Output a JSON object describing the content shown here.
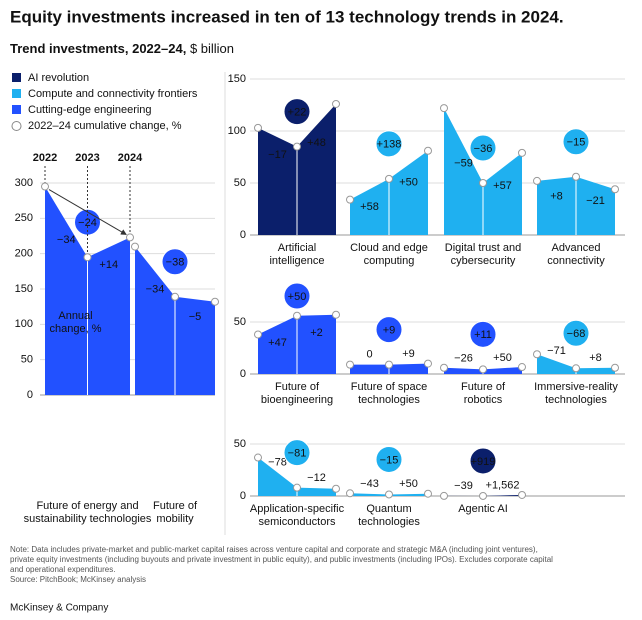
{
  "header": {
    "title": "Equity investments increased in ten of 13 technology trends in 2024.",
    "subtitle_bold": "Trend investments, 2022–24,",
    "subtitle_unit": "$ billion"
  },
  "legend": [
    {
      "label": "AI revolution",
      "color": "#0b1f6b"
    },
    {
      "label": "Compute and connectivity frontiers",
      "color": "#1fb0f0"
    },
    {
      "label": "Cutting-edge engineering",
      "color": "#2251ff"
    },
    {
      "label": "2022–24 cumulative change, %"
    }
  ],
  "chart_data": [
    {
      "type": "area",
      "ylim": [
        0,
        300
      ],
      "yticks": [
        0,
        50,
        100,
        150,
        200,
        250,
        300
      ],
      "grid": true,
      "panels": [
        {
          "label": [
            "Future of energy and",
            "sustainability technologies"
          ],
          "color": "#2251ff",
          "x": [
            "2022",
            "2023",
            "2024"
          ],
          "values": [
            295,
            195,
            223
          ],
          "change_labels": [
            "−34",
            "+14"
          ],
          "cumulative_label": "−24",
          "annotation": [
            "Annual",
            "change, %"
          ]
        },
        {
          "label": [
            "Future of",
            "mobility"
          ],
          "color": "#2251ff",
          "values": [
            210,
            139,
            132
          ],
          "change_labels": [
            "−34",
            "−5"
          ],
          "cumulative_label": "−38"
        }
      ]
    },
    {
      "type": "area",
      "ylim": [
        0,
        150
      ],
      "yticks": [
        0,
        50,
        100,
        150
      ],
      "grid": true,
      "panels": [
        {
          "label": [
            "Artificial",
            "intelligence"
          ],
          "color": "#0b1f6b",
          "values": [
            103,
            85,
            126
          ],
          "change_labels": [
            "−17",
            "+48"
          ],
          "cumulative_label": "+22"
        },
        {
          "label": [
            "Cloud and edge",
            "computing"
          ],
          "color": "#1fb0f0",
          "values": [
            34,
            54,
            81
          ],
          "change_labels": [
            "+58",
            "+50"
          ],
          "cumulative_label": "+138"
        },
        {
          "label": [
            "Digital trust and",
            "cybersecurity"
          ],
          "color": "#1fb0f0",
          "values": [
            122,
            50,
            79
          ],
          "change_labels": [
            "−59",
            "+57"
          ],
          "cumulative_label": "−36"
        },
        {
          "label": [
            "Advanced",
            "connectivity"
          ],
          "color": "#1fb0f0",
          "values": [
            52,
            56,
            44
          ],
          "change_labels": [
            "+8",
            "−21"
          ],
          "cumulative_label": "−15"
        }
      ]
    },
    {
      "type": "area",
      "ylim": [
        0,
        75
      ],
      "yticks": [
        0,
        50
      ],
      "grid": true,
      "panels": [
        {
          "label": [
            "Future of",
            "bioengineering"
          ],
          "color": "#2251ff",
          "values": [
            38,
            56,
            57
          ],
          "change_labels": [
            "+47",
            "+2"
          ],
          "cumulative_label": "+50"
        },
        {
          "label": [
            "Future of space",
            "technologies"
          ],
          "color": "#2251ff",
          "values": [
            9,
            9,
            10
          ],
          "change_labels": [
            "0",
            "+9"
          ],
          "cumulative_label": "+9"
        },
        {
          "label": [
            "Future of",
            "robotics"
          ],
          "color": "#2251ff",
          "values": [
            6,
            4.5,
            6.7
          ],
          "change_labels": [
            "−26",
            "+50"
          ],
          "cumulative_label": "+11"
        },
        {
          "label": [
            "Immersive-reality",
            "technologies"
          ],
          "color": "#1fb0f0",
          "values": [
            19,
            5.5,
            6
          ],
          "change_labels": [
            "−71",
            "+8"
          ],
          "cumulative_label": "−68"
        }
      ]
    },
    {
      "type": "area",
      "ylim": [
        0,
        75
      ],
      "yticks": [
        0,
        50
      ],
      "grid": true,
      "panels": [
        {
          "label": [
            "Application-specific",
            "semiconductors"
          ],
          "color": "#1fb0f0",
          "values": [
            37,
            8,
            7
          ],
          "change_labels": [
            "−78",
            "−12"
          ],
          "cumulative_label": "−81"
        },
        {
          "label": [
            "Quantum",
            "technologies"
          ],
          "color": "#1fb0f0",
          "values": [
            2.6,
            1.5,
            2.2
          ],
          "change_labels": [
            "−43",
            "+50"
          ],
          "cumulative_label": "−15"
        },
        {
          "label": [
            "Agentic AI"
          ],
          "color": "#0b1f6b",
          "values": [
            0.1,
            0.06,
            1
          ],
          "change_labels": [
            "−39",
            "+1,562"
          ],
          "cumulative_label": "+919"
        }
      ]
    }
  ],
  "footer": {
    "note": [
      "Note: Data includes private-market and public-market capital raises across venture capital and corporate and strategic M&A (including joint ventures),",
      "private equity investments (including buyouts and private investment in public equity), and public investments (including IPOs). Excludes corporate capital",
      "and operational expenditures."
    ],
    "source": "Source: PitchBook; McKinsey analysis",
    "brand": "McKinsey & Company"
  }
}
